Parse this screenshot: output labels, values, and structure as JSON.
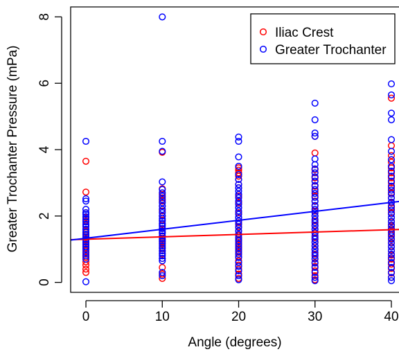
{
  "chart_data": {
    "type": "scatter",
    "title": "",
    "xlabel": "Angle (degrees)",
    "ylabel": "Greater Trochanter Pressure (mPa)",
    "xlim": [
      -2,
      41
    ],
    "ylim": [
      -0.3,
      8.3
    ],
    "x_ticks": [
      0,
      10,
      20,
      30,
      40
    ],
    "y_ticks": [
      0,
      2,
      4,
      6,
      8
    ],
    "legend_position": "top-right",
    "series": [
      {
        "name": "Iliac Crest",
        "color": "#ff0000",
        "points": [
          [
            0,
            3.65
          ],
          [
            0,
            2.72
          ],
          [
            0,
            2.1
          ],
          [
            0,
            1.95
          ],
          [
            0,
            1.85
          ],
          [
            0,
            1.72
          ],
          [
            0,
            1.6
          ],
          [
            0,
            1.5
          ],
          [
            0,
            1.42
          ],
          [
            0,
            1.35
          ],
          [
            0,
            1.28
          ],
          [
            0,
            1.2
          ],
          [
            0,
            1.12
          ],
          [
            0,
            1.05
          ],
          [
            0,
            0.95
          ],
          [
            0,
            0.85
          ],
          [
            0,
            0.75
          ],
          [
            0,
            0.62
          ],
          [
            0,
            0.52
          ],
          [
            0,
            0.4
          ],
          [
            0,
            0.3
          ],
          [
            10,
            3.92
          ],
          [
            10,
            2.82
          ],
          [
            10,
            2.65
          ],
          [
            10,
            2.55
          ],
          [
            10,
            2.45
          ],
          [
            10,
            2.3
          ],
          [
            10,
            2.15
          ],
          [
            10,
            2.0
          ],
          [
            10,
            1.88
          ],
          [
            10,
            1.75
          ],
          [
            10,
            1.62
          ],
          [
            10,
            1.5
          ],
          [
            10,
            1.4
          ],
          [
            10,
            1.3
          ],
          [
            10,
            1.22
          ],
          [
            10,
            1.15
          ],
          [
            10,
            1.05
          ],
          [
            10,
            0.95
          ],
          [
            10,
            0.85
          ],
          [
            10,
            0.72
          ],
          [
            10,
            0.45
          ],
          [
            10,
            0.25
          ],
          [
            10,
            0.12
          ],
          [
            20,
            3.45
          ],
          [
            20,
            3.38
          ],
          [
            20,
            3.3
          ],
          [
            20,
            3.2
          ],
          [
            20,
            3.1
          ],
          [
            20,
            2.95
          ],
          [
            20,
            2.85
          ],
          [
            20,
            2.6
          ],
          [
            20,
            2.4
          ],
          [
            20,
            2.25
          ],
          [
            20,
            2.1
          ],
          [
            20,
            1.95
          ],
          [
            20,
            1.8
          ],
          [
            20,
            1.68
          ],
          [
            20,
            1.55
          ],
          [
            20,
            1.42
          ],
          [
            20,
            1.3
          ],
          [
            20,
            1.2
          ],
          [
            20,
            1.1
          ],
          [
            20,
            1.0
          ],
          [
            20,
            0.9
          ],
          [
            20,
            0.78
          ],
          [
            20,
            0.65
          ],
          [
            20,
            0.52
          ],
          [
            20,
            0.4
          ],
          [
            20,
            0.25
          ],
          [
            20,
            0.12
          ],
          [
            30,
            4.4
          ],
          [
            30,
            3.9
          ],
          [
            30,
            3.4
          ],
          [
            30,
            3.3
          ],
          [
            30,
            3.15
          ],
          [
            30,
            3.05
          ],
          [
            30,
            2.9
          ],
          [
            30,
            2.75
          ],
          [
            30,
            2.6
          ],
          [
            30,
            2.45
          ],
          [
            30,
            2.3
          ],
          [
            30,
            2.15
          ],
          [
            30,
            2.0
          ],
          [
            30,
            1.85
          ],
          [
            30,
            1.72
          ],
          [
            30,
            1.6
          ],
          [
            30,
            1.48
          ],
          [
            30,
            1.35
          ],
          [
            30,
            1.22
          ],
          [
            30,
            1.1
          ],
          [
            30,
            0.98
          ],
          [
            30,
            0.85
          ],
          [
            30,
            0.72
          ],
          [
            30,
            0.6
          ],
          [
            30,
            0.48
          ],
          [
            30,
            0.35
          ],
          [
            30,
            0.2
          ],
          [
            30,
            0.08
          ],
          [
            40,
            5.55
          ],
          [
            40,
            4.12
          ],
          [
            40,
            3.82
          ],
          [
            40,
            3.62
          ],
          [
            40,
            3.45
          ],
          [
            40,
            3.3
          ],
          [
            40,
            3.15
          ],
          [
            40,
            3.0
          ],
          [
            40,
            2.85
          ],
          [
            40,
            2.7
          ],
          [
            40,
            2.55
          ],
          [
            40,
            2.4
          ],
          [
            40,
            2.25
          ],
          [
            40,
            2.1
          ],
          [
            40,
            1.95
          ],
          [
            40,
            1.82
          ],
          [
            40,
            1.7
          ],
          [
            40,
            1.58
          ],
          [
            40,
            1.45
          ],
          [
            40,
            1.32
          ],
          [
            40,
            1.2
          ],
          [
            40,
            1.08
          ],
          [
            40,
            0.95
          ],
          [
            40,
            0.82
          ],
          [
            40,
            0.7
          ],
          [
            40,
            0.55
          ],
          [
            40,
            0.42
          ],
          [
            40,
            0.28
          ],
          [
            40,
            0.15
          ]
        ],
        "fit": {
          "intercept": 1.3,
          "slope": 0.0072
        }
      },
      {
        "name": "Greater Trochanter",
        "color": "#0000ff",
        "points": [
          [
            0,
            4.25
          ],
          [
            0,
            2.52
          ],
          [
            0,
            2.45
          ],
          [
            0,
            2.2
          ],
          [
            0,
            2.1
          ],
          [
            0,
            2.05
          ],
          [
            0,
            1.98
          ],
          [
            0,
            1.9
          ],
          [
            0,
            1.82
          ],
          [
            0,
            1.75
          ],
          [
            0,
            1.68
          ],
          [
            0,
            1.6
          ],
          [
            0,
            1.52
          ],
          [
            0,
            1.45
          ],
          [
            0,
            1.38
          ],
          [
            0,
            1.3
          ],
          [
            0,
            1.22
          ],
          [
            0,
            1.15
          ],
          [
            0,
            1.08
          ],
          [
            0,
            1.0
          ],
          [
            0,
            0.9
          ],
          [
            0,
            0.8
          ],
          [
            0,
            0.7
          ],
          [
            0,
            0.02
          ],
          [
            10,
            8.0
          ],
          [
            10,
            4.25
          ],
          [
            10,
            3.95
          ],
          [
            10,
            3.03
          ],
          [
            10,
            2.8
          ],
          [
            10,
            2.7
          ],
          [
            10,
            2.6
          ],
          [
            10,
            2.5
          ],
          [
            10,
            2.4
          ],
          [
            10,
            2.3
          ],
          [
            10,
            2.2
          ],
          [
            10,
            2.1
          ],
          [
            10,
            2.0
          ],
          [
            10,
            1.92
          ],
          [
            10,
            1.85
          ],
          [
            10,
            1.78
          ],
          [
            10,
            1.7
          ],
          [
            10,
            1.62
          ],
          [
            10,
            1.55
          ],
          [
            10,
            1.48
          ],
          [
            10,
            1.4
          ],
          [
            10,
            1.32
          ],
          [
            10,
            1.25
          ],
          [
            10,
            1.18
          ],
          [
            10,
            1.1
          ],
          [
            10,
            1.02
          ],
          [
            10,
            0.95
          ],
          [
            10,
            0.88
          ],
          [
            10,
            0.8
          ],
          [
            10,
            0.72
          ],
          [
            10,
            0.65
          ],
          [
            10,
            0.3
          ],
          [
            10,
            0.2
          ],
          [
            20,
            4.38
          ],
          [
            20,
            4.25
          ],
          [
            20,
            3.78
          ],
          [
            20,
            3.5
          ],
          [
            20,
            3.25
          ],
          [
            20,
            3.1
          ],
          [
            20,
            2.95
          ],
          [
            20,
            2.85
          ],
          [
            20,
            2.75
          ],
          [
            20,
            2.65
          ],
          [
            20,
            2.55
          ],
          [
            20,
            2.45
          ],
          [
            20,
            2.35
          ],
          [
            20,
            2.25
          ],
          [
            20,
            2.15
          ],
          [
            20,
            2.05
          ],
          [
            20,
            1.95
          ],
          [
            20,
            1.85
          ],
          [
            20,
            1.75
          ],
          [
            20,
            1.65
          ],
          [
            20,
            1.55
          ],
          [
            20,
            1.45
          ],
          [
            20,
            1.35
          ],
          [
            20,
            1.25
          ],
          [
            20,
            1.15
          ],
          [
            20,
            1.05
          ],
          [
            20,
            0.95
          ],
          [
            20,
            0.85
          ],
          [
            20,
            0.75
          ],
          [
            20,
            0.6
          ],
          [
            20,
            0.48
          ],
          [
            20,
            0.35
          ],
          [
            20,
            0.2
          ],
          [
            20,
            0.08
          ],
          [
            30,
            5.4
          ],
          [
            30,
            4.9
          ],
          [
            30,
            4.5
          ],
          [
            30,
            4.4
          ],
          [
            30,
            3.72
          ],
          [
            30,
            3.55
          ],
          [
            30,
            3.42
          ],
          [
            30,
            3.3
          ],
          [
            30,
            3.18
          ],
          [
            30,
            3.05
          ],
          [
            30,
            2.92
          ],
          [
            30,
            2.8
          ],
          [
            30,
            2.68
          ],
          [
            30,
            2.56
          ],
          [
            30,
            2.44
          ],
          [
            30,
            2.32
          ],
          [
            30,
            2.2
          ],
          [
            30,
            2.1
          ],
          [
            30,
            2.0
          ],
          [
            30,
            1.9
          ],
          [
            30,
            1.8
          ],
          [
            30,
            1.7
          ],
          [
            30,
            1.6
          ],
          [
            30,
            1.5
          ],
          [
            30,
            1.4
          ],
          [
            30,
            1.3
          ],
          [
            30,
            1.2
          ],
          [
            30,
            1.1
          ],
          [
            30,
            1.0
          ],
          [
            30,
            0.9
          ],
          [
            30,
            0.8
          ],
          [
            30,
            0.7
          ],
          [
            30,
            0.58
          ],
          [
            30,
            0.45
          ],
          [
            30,
            0.3
          ],
          [
            30,
            0.15
          ],
          [
            30,
            0.05
          ],
          [
            40,
            5.98
          ],
          [
            40,
            5.65
          ],
          [
            40,
            5.1
          ],
          [
            40,
            4.9
          ],
          [
            40,
            4.3
          ],
          [
            40,
            3.95
          ],
          [
            40,
            3.7
          ],
          [
            40,
            3.5
          ],
          [
            40,
            3.35
          ],
          [
            40,
            3.2
          ],
          [
            40,
            3.05
          ],
          [
            40,
            2.9
          ],
          [
            40,
            2.78
          ],
          [
            40,
            2.66
          ],
          [
            40,
            2.54
          ],
          [
            40,
            2.42
          ],
          [
            40,
            2.3
          ],
          [
            40,
            2.18
          ],
          [
            40,
            2.06
          ],
          [
            40,
            1.95
          ],
          [
            40,
            1.84
          ],
          [
            40,
            1.73
          ],
          [
            40,
            1.62
          ],
          [
            40,
            1.51
          ],
          [
            40,
            1.4
          ],
          [
            40,
            1.29
          ],
          [
            40,
            1.18
          ],
          [
            40,
            1.07
          ],
          [
            40,
            0.96
          ],
          [
            40,
            0.85
          ],
          [
            40,
            0.74
          ],
          [
            40,
            0.6
          ],
          [
            40,
            0.45
          ],
          [
            40,
            0.3
          ],
          [
            40,
            0.15
          ],
          [
            40,
            0.05
          ]
        ],
        "fit": {
          "intercept": 1.33,
          "slope": 0.027
        }
      }
    ]
  }
}
